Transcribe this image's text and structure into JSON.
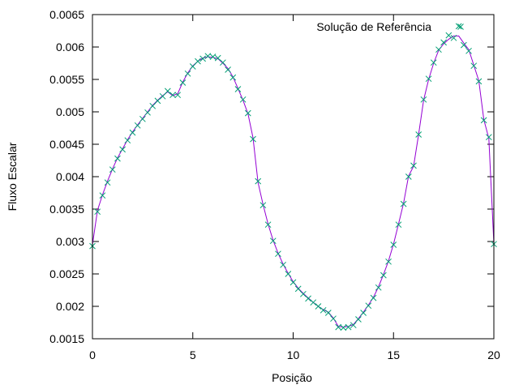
{
  "chart_data": {
    "type": "line",
    "xlabel": "Posição",
    "ylabel": "Fluxo Escalar",
    "xlim": [
      0,
      20
    ],
    "ylim": [
      0.0015,
      0.0065
    ],
    "xticks": [
      "0",
      "5",
      "10",
      "15",
      "20"
    ],
    "yticks": [
      "0.0015",
      "0.002",
      "0.0025",
      "0.003",
      "0.0035",
      "0.004",
      "0.0045",
      "0.005",
      "0.0055",
      "0.006",
      "0.0065"
    ],
    "grid": false,
    "legend_position": "top-right",
    "series": [
      {
        "name": "",
        "style": "line",
        "color": "#9400d3",
        "x": [
          0,
          0.25,
          0.5,
          0.75,
          1,
          1.25,
          1.5,
          1.75,
          2,
          2.25,
          2.5,
          2.75,
          3,
          3.25,
          3.5,
          3.75,
          4,
          4.25,
          4.5,
          4.75,
          5,
          5.25,
          5.5,
          5.75,
          6,
          6.25,
          6.5,
          6.75,
          7,
          7.25,
          7.5,
          7.75,
          8,
          8.25,
          8.5,
          8.75,
          9,
          9.25,
          9.5,
          9.75,
          10,
          10.25,
          10.5,
          10.75,
          11,
          11.25,
          11.5,
          11.75,
          12,
          12.25,
          12.5,
          12.75,
          13,
          13.25,
          13.5,
          13.75,
          14,
          14.25,
          14.5,
          14.75,
          15,
          15.25,
          15.5,
          15.75,
          16,
          16.25,
          16.5,
          16.75,
          17,
          17.25,
          17.5,
          17.75,
          18,
          18.25,
          18.5,
          18.75,
          19,
          19.25,
          19.5,
          19.75,
          20
        ],
        "y": [
          0.00295,
          0.00348,
          0.00372,
          0.00393,
          0.00412,
          0.00429,
          0.00443,
          0.00457,
          0.00469,
          0.0048,
          0.0049,
          0.005,
          0.0051,
          0.00518,
          0.00525,
          0.00531,
          0.00525,
          0.00528,
          0.00546,
          0.0056,
          0.00571,
          0.00578,
          0.00583,
          0.00585,
          0.00584,
          0.00582,
          0.00575,
          0.00567,
          0.00554,
          0.00536,
          0.00518,
          0.00497,
          0.0046,
          0.00391,
          0.00357,
          0.00327,
          0.00302,
          0.00282,
          0.00265,
          0.00251,
          0.00238,
          0.00228,
          0.0022,
          0.00213,
          0.00206,
          0.002,
          0.00195,
          0.00191,
          0.00182,
          0.00169,
          0.00168,
          0.00169,
          0.00172,
          0.00181,
          0.00191,
          0.00202,
          0.00214,
          0.0023,
          0.00249,
          0.0027,
          0.00296,
          0.00327,
          0.00359,
          0.00401,
          0.00416,
          0.00465,
          0.00518,
          0.0055,
          0.00575,
          0.00595,
          0.00605,
          0.00612,
          0.00617,
          0.00617,
          0.00606,
          0.00596,
          0.00572,
          0.00548,
          0.00488,
          0.00459,
          0.00297
        ]
      },
      {
        "name": "Solução de Referência",
        "style": "points",
        "color": "#009e73",
        "marker": "x",
        "x": [
          0,
          0.25,
          0.5,
          0.75,
          1,
          1.25,
          1.5,
          1.75,
          2,
          2.25,
          2.5,
          2.75,
          3,
          3.25,
          3.5,
          3.75,
          4,
          4.25,
          4.5,
          4.75,
          5,
          5.25,
          5.5,
          5.75,
          6,
          6.25,
          6.5,
          6.75,
          7,
          7.25,
          7.5,
          7.75,
          8,
          8.25,
          8.5,
          8.75,
          9,
          9.25,
          9.5,
          9.75,
          10,
          10.25,
          10.5,
          10.75,
          11,
          11.25,
          11.5,
          11.75,
          12,
          12.25,
          12.5,
          12.75,
          13,
          13.25,
          13.5,
          13.75,
          14,
          14.25,
          14.5,
          14.75,
          15,
          15.25,
          15.5,
          15.75,
          16,
          16.25,
          16.5,
          16.75,
          17,
          17.25,
          17.5,
          17.75,
          18,
          18.25,
          18.5,
          18.75,
          19,
          19.25,
          19.5,
          19.75,
          20
        ],
        "y": [
          0.00293,
          0.00346,
          0.00371,
          0.00391,
          0.00411,
          0.00428,
          0.00442,
          0.00456,
          0.00468,
          0.00479,
          0.00489,
          0.00499,
          0.00509,
          0.00517,
          0.00524,
          0.00532,
          0.00526,
          0.00526,
          0.00545,
          0.00559,
          0.0057,
          0.00578,
          0.00582,
          0.00586,
          0.00585,
          0.00583,
          0.00576,
          0.00565,
          0.00553,
          0.00535,
          0.00519,
          0.00498,
          0.00458,
          0.00393,
          0.00356,
          0.00326,
          0.00301,
          0.00281,
          0.00264,
          0.0025,
          0.00237,
          0.00227,
          0.00219,
          0.00212,
          0.00206,
          0.002,
          0.00194,
          0.0019,
          0.00181,
          0.00168,
          0.00167,
          0.00168,
          0.00171,
          0.0018,
          0.0019,
          0.00201,
          0.00213,
          0.00229,
          0.00248,
          0.00269,
          0.00295,
          0.00326,
          0.00358,
          0.004,
          0.00417,
          0.00465,
          0.00519,
          0.00551,
          0.00576,
          0.00596,
          0.00607,
          0.00618,
          0.00614,
          0.00632,
          0.00603,
          0.00594,
          0.00571,
          0.00547,
          0.00487,
          0.00461,
          0.00296
        ]
      }
    ]
  }
}
